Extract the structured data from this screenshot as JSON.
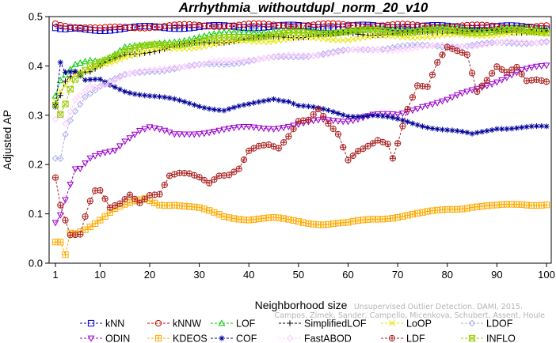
{
  "chart_data": {
    "type": "line",
    "title": "Arrhythmia_withoutdupl_norm_20_v10",
    "xlabel": "Neighborhood size",
    "ylabel": "Adjusted AP",
    "xlim": [
      1,
      100
    ],
    "ylim": [
      0,
      0.5
    ],
    "xticks": [
      1,
      10,
      20,
      30,
      40,
      50,
      60,
      70,
      80,
      90,
      100
    ],
    "yticks": [
      0.0,
      0.1,
      0.2,
      0.3,
      0.4,
      0.5
    ],
    "ytick_labels": [
      "0.0",
      "0.1",
      "0.2",
      "0.3",
      "0.4",
      "0.5"
    ],
    "grid": false,
    "legend_position": "bottom",
    "annotation": [
      "Unsupervised Outlier Detection. DAMI, 2015.",
      "Campos, Zimek, Sander, Campello, Micenkova, Schubert, Assent, Houle"
    ],
    "series": [
      {
        "name": "kNN",
        "color": "#0000cc",
        "marker": "square",
        "knots": [
          [
            1,
            0.476
          ],
          [
            2,
            0.473
          ],
          [
            3,
            0.472
          ],
          [
            5,
            0.474
          ],
          [
            10,
            0.474
          ],
          [
            15,
            0.476
          ],
          [
            20,
            0.478
          ],
          [
            30,
            0.479
          ],
          [
            40,
            0.48
          ],
          [
            50,
            0.48
          ],
          [
            60,
            0.48
          ],
          [
            70,
            0.48
          ],
          [
            80,
            0.479
          ],
          [
            90,
            0.479
          ],
          [
            100,
            0.478
          ]
        ]
      },
      {
        "name": "kNNW",
        "color": "#cc0000",
        "marker": "circle",
        "knots": [
          [
            1,
            0.486
          ],
          [
            2,
            0.484
          ],
          [
            3,
            0.483
          ],
          [
            5,
            0.481
          ],
          [
            8,
            0.478
          ],
          [
            10,
            0.475
          ],
          [
            12,
            0.476
          ],
          [
            15,
            0.478
          ],
          [
            20,
            0.48
          ],
          [
            30,
            0.482
          ],
          [
            40,
            0.483
          ],
          [
            50,
            0.483
          ],
          [
            60,
            0.483
          ],
          [
            70,
            0.482
          ],
          [
            80,
            0.481
          ],
          [
            90,
            0.48
          ],
          [
            100,
            0.479
          ]
        ]
      },
      {
        "name": "LOF",
        "color": "#00cc00",
        "marker": "triangle-up",
        "knots": [
          [
            1,
            0.34
          ],
          [
            2,
            0.37
          ],
          [
            3,
            0.38
          ],
          [
            5,
            0.4
          ],
          [
            8,
            0.41
          ],
          [
            10,
            0.41
          ],
          [
            12,
            0.42
          ],
          [
            15,
            0.44
          ],
          [
            20,
            0.44
          ],
          [
            25,
            0.45
          ],
          [
            30,
            0.46
          ],
          [
            35,
            0.465
          ],
          [
            40,
            0.47
          ],
          [
            50,
            0.47
          ],
          [
            60,
            0.47
          ],
          [
            70,
            0.475
          ],
          [
            80,
            0.475
          ],
          [
            90,
            0.475
          ],
          [
            100,
            0.475
          ]
        ]
      },
      {
        "name": "SimplifiedLOF",
        "color": "#000000",
        "marker": "plus",
        "knots": [
          [
            1,
            0.32
          ],
          [
            2,
            0.34
          ],
          [
            3,
            0.37
          ],
          [
            5,
            0.39
          ],
          [
            8,
            0.39
          ],
          [
            10,
            0.4
          ],
          [
            12,
            0.41
          ],
          [
            15,
            0.42
          ],
          [
            20,
            0.43
          ],
          [
            25,
            0.44
          ],
          [
            30,
            0.445
          ],
          [
            40,
            0.455
          ],
          [
            50,
            0.46
          ],
          [
            60,
            0.465
          ],
          [
            70,
            0.465
          ],
          [
            80,
            0.47
          ],
          [
            90,
            0.47
          ],
          [
            100,
            0.47
          ]
        ]
      },
      {
        "name": "LoOP",
        "color": "#e6e600",
        "marker": "x",
        "knots": [
          [
            1,
            0.33
          ],
          [
            2,
            0.35
          ],
          [
            5,
            0.38
          ],
          [
            10,
            0.4
          ],
          [
            15,
            0.42
          ],
          [
            20,
            0.43
          ],
          [
            30,
            0.44
          ],
          [
            40,
            0.45
          ],
          [
            50,
            0.455
          ],
          [
            60,
            0.455
          ],
          [
            70,
            0.46
          ],
          [
            80,
            0.46
          ],
          [
            90,
            0.465
          ],
          [
            100,
            0.465
          ]
        ]
      },
      {
        "name": "LDOF",
        "color": "#aaaaee",
        "marker": "diamond",
        "knots": [
          [
            2,
            0.21
          ],
          [
            3,
            0.26
          ],
          [
            4,
            0.29
          ],
          [
            5,
            0.31
          ],
          [
            7,
            0.34
          ],
          [
            10,
            0.36
          ],
          [
            15,
            0.38
          ],
          [
            20,
            0.39
          ],
          [
            30,
            0.4
          ],
          [
            40,
            0.41
          ],
          [
            50,
            0.42
          ],
          [
            60,
            0.43
          ],
          [
            70,
            0.44
          ],
          [
            80,
            0.44
          ],
          [
            90,
            0.445
          ],
          [
            100,
            0.45
          ]
        ]
      },
      {
        "name": "ODIN",
        "color": "#9900cc",
        "marker": "triangle-down",
        "knots": [
          [
            1,
            0.085
          ],
          [
            2,
            0.1
          ],
          [
            3,
            0.13
          ],
          [
            4,
            0.16
          ],
          [
            5,
            0.19
          ],
          [
            6,
            0.19
          ],
          [
            8,
            0.21
          ],
          [
            10,
            0.22
          ],
          [
            13,
            0.23
          ],
          [
            15,
            0.25
          ],
          [
            18,
            0.27
          ],
          [
            20,
            0.275
          ],
          [
            25,
            0.26
          ],
          [
            30,
            0.265
          ],
          [
            35,
            0.27
          ],
          [
            40,
            0.275
          ],
          [
            45,
            0.275
          ],
          [
            50,
            0.28
          ],
          [
            55,
            0.29
          ],
          [
            60,
            0.29
          ],
          [
            65,
            0.3
          ],
          [
            70,
            0.3
          ],
          [
            75,
            0.32
          ],
          [
            80,
            0.33
          ],
          [
            85,
            0.35
          ],
          [
            90,
            0.37
          ],
          [
            95,
            0.39
          ],
          [
            100,
            0.4
          ]
        ]
      },
      {
        "name": "KDEOS",
        "color": "#ffaa00",
        "marker": "square-cross",
        "knots": [
          [
            1,
            0.04
          ],
          [
            2,
            0.04
          ],
          [
            3,
            0.015
          ],
          [
            4,
            0.06
          ],
          [
            5,
            0.06
          ],
          [
            7,
            0.07
          ],
          [
            10,
            0.09
          ],
          [
            13,
            0.11
          ],
          [
            16,
            0.12
          ],
          [
            19,
            0.13
          ],
          [
            22,
            0.12
          ],
          [
            25,
            0.12
          ],
          [
            30,
            0.11
          ],
          [
            35,
            0.095
          ],
          [
            40,
            0.09
          ],
          [
            45,
            0.09
          ],
          [
            50,
            0.085
          ],
          [
            55,
            0.08
          ],
          [
            60,
            0.08
          ],
          [
            65,
            0.09
          ],
          [
            70,
            0.095
          ],
          [
            75,
            0.1
          ],
          [
            80,
            0.11
          ],
          [
            85,
            0.115
          ],
          [
            90,
            0.115
          ],
          [
            95,
            0.12
          ],
          [
            100,
            0.12
          ]
        ]
      },
      {
        "name": "COF",
        "color": "#000099",
        "marker": "asterisk",
        "knots": [
          [
            1,
            0.32
          ],
          [
            2,
            0.41
          ],
          [
            3,
            0.39
          ],
          [
            5,
            0.39
          ],
          [
            7,
            0.37
          ],
          [
            10,
            0.37
          ],
          [
            12,
            0.36
          ],
          [
            15,
            0.35
          ],
          [
            20,
            0.34
          ],
          [
            25,
            0.33
          ],
          [
            30,
            0.32
          ],
          [
            35,
            0.31
          ],
          [
            40,
            0.32
          ],
          [
            45,
            0.335
          ],
          [
            48,
            0.33
          ],
          [
            50,
            0.32
          ],
          [
            55,
            0.31
          ],
          [
            60,
            0.3
          ],
          [
            65,
            0.3
          ],
          [
            70,
            0.29
          ],
          [
            75,
            0.28
          ],
          [
            80,
            0.27
          ],
          [
            85,
            0.26
          ],
          [
            90,
            0.275
          ],
          [
            95,
            0.275
          ],
          [
            100,
            0.275
          ]
        ]
      },
      {
        "name": "FastABOD",
        "color": "#ffccff",
        "marker": "diamond",
        "knots": [
          [
            1,
            0.29
          ],
          [
            2,
            0.3
          ],
          [
            3,
            0.28
          ],
          [
            5,
            0.33
          ],
          [
            8,
            0.36
          ],
          [
            10,
            0.36
          ],
          [
            15,
            0.38
          ],
          [
            20,
            0.39
          ],
          [
            25,
            0.4
          ],
          [
            30,
            0.4
          ],
          [
            35,
            0.41
          ],
          [
            40,
            0.415
          ],
          [
            50,
            0.42
          ],
          [
            60,
            0.43
          ],
          [
            70,
            0.435
          ],
          [
            80,
            0.44
          ],
          [
            90,
            0.445
          ],
          [
            100,
            0.45
          ]
        ]
      },
      {
        "name": "LDF",
        "color": "#aa2222",
        "marker": "circle-plus",
        "knots": [
          [
            1,
            0.175
          ],
          [
            2,
            0.12
          ],
          [
            3,
            0.09
          ],
          [
            4,
            0.06
          ],
          [
            5,
            0.06
          ],
          [
            6,
            0.06
          ],
          [
            7,
            0.095
          ],
          [
            8,
            0.125
          ],
          [
            9,
            0.145
          ],
          [
            10,
            0.145
          ],
          [
            12,
            0.11
          ],
          [
            14,
            0.12
          ],
          [
            16,
            0.14
          ],
          [
            18,
            0.125
          ],
          [
            20,
            0.14
          ],
          [
            22,
            0.14
          ],
          [
            24,
            0.175
          ],
          [
            26,
            0.18
          ],
          [
            28,
            0.18
          ],
          [
            30,
            0.175
          ],
          [
            32,
            0.165
          ],
          [
            34,
            0.18
          ],
          [
            36,
            0.18
          ],
          [
            38,
            0.19
          ],
          [
            40,
            0.225
          ],
          [
            42,
            0.235
          ],
          [
            44,
            0.24
          ],
          [
            46,
            0.235
          ],
          [
            48,
            0.26
          ],
          [
            50,
            0.29
          ],
          [
            52,
            0.29
          ],
          [
            54,
            0.31
          ],
          [
            56,
            0.28
          ],
          [
            58,
            0.26
          ],
          [
            60,
            0.21
          ],
          [
            62,
            0.23
          ],
          [
            64,
            0.24
          ],
          [
            66,
            0.25
          ],
          [
            68,
            0.24
          ],
          [
            69,
            0.21
          ],
          [
            70,
            0.24
          ],
          [
            72,
            0.31
          ],
          [
            74,
            0.36
          ],
          [
            76,
            0.36
          ],
          [
            78,
            0.41
          ],
          [
            80,
            0.44
          ],
          [
            82,
            0.43
          ],
          [
            84,
            0.42
          ],
          [
            86,
            0.345
          ],
          [
            88,
            0.37
          ],
          [
            90,
            0.4
          ],
          [
            92,
            0.39
          ],
          [
            94,
            0.4
          ],
          [
            96,
            0.37
          ],
          [
            98,
            0.37
          ],
          [
            100,
            0.365
          ]
        ]
      },
      {
        "name": "INFLO",
        "color": "#99cc00",
        "marker": "square-x",
        "knots": [
          [
            1,
            0.32
          ],
          [
            2,
            0.3
          ],
          [
            3,
            0.32
          ],
          [
            4,
            0.35
          ],
          [
            5,
            0.37
          ],
          [
            8,
            0.4
          ],
          [
            10,
            0.41
          ],
          [
            15,
            0.43
          ],
          [
            20,
            0.44
          ],
          [
            30,
            0.45
          ],
          [
            40,
            0.46
          ],
          [
            50,
            0.465
          ],
          [
            60,
            0.47
          ],
          [
            70,
            0.47
          ],
          [
            80,
            0.47
          ],
          [
            90,
            0.47
          ],
          [
            100,
            0.47
          ]
        ]
      }
    ]
  }
}
